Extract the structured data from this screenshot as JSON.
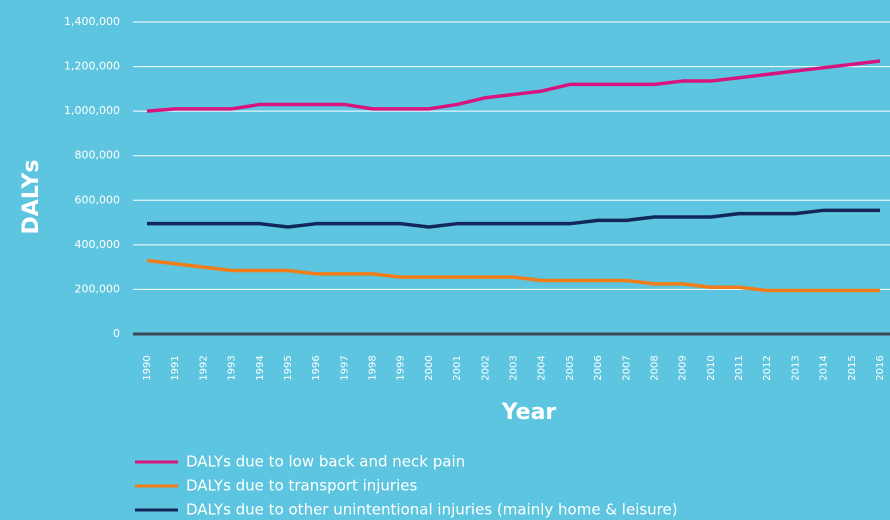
{
  "chart_data": {
    "type": "line",
    "x_label": "Year",
    "y_label": "DALYs",
    "categories": [
      "1990",
      "1991",
      "1992",
      "1993",
      "1994",
      "1995",
      "1996",
      "1997",
      "1998",
      "1999",
      "2000",
      "2001",
      "2002",
      "2003",
      "2004",
      "2005",
      "2006",
      "2007",
      "2008",
      "2009",
      "2010",
      "2011",
      "2012",
      "2013",
      "2014",
      "2015",
      "2016"
    ],
    "series": [
      {
        "name": "DALYs due to low back and neck pain",
        "color": "#d6157f",
        "values": [
          1000000,
          1010000,
          1010000,
          1010000,
          1030000,
          1030000,
          1030000,
          1030000,
          1010000,
          1010000,
          1010000,
          1030000,
          1060000,
          1075000,
          1090000,
          1120000,
          1120000,
          1120000,
          1120000,
          1135000,
          1135000,
          1150000,
          1165000,
          1180000,
          1195000,
          1210000,
          1225000
        ]
      },
      {
        "name": "DALYs due to transport injuries",
        "color": "#f07c1a",
        "values": [
          330000,
          315000,
          300000,
          285000,
          285000,
          285000,
          270000,
          270000,
          270000,
          255000,
          255000,
          255000,
          255000,
          255000,
          240000,
          240000,
          240000,
          240000,
          225000,
          225000,
          210000,
          210000,
          195000,
          195000,
          195000,
          195000,
          195000
        ]
      },
      {
        "name": "DALYs due to other unintentional injuries (mainly home & leisure)",
        "color": "#12285a",
        "values": [
          495000,
          495000,
          495000,
          495000,
          495000,
          480000,
          495000,
          495000,
          495000,
          495000,
          480000,
          495000,
          495000,
          495000,
          495000,
          495000,
          510000,
          510000,
          525000,
          525000,
          525000,
          540000,
          540000,
          540000,
          555000,
          555000,
          555000
        ]
      }
    ],
    "ylim": [
      0,
      1400000
    ],
    "yticks": [
      0,
      {
        "value": 200000,
        "label": "200,000"
      },
      {
        "value": 400000,
        "label": "400,000"
      },
      {
        "value": 600000,
        "label": "600,000"
      },
      {
        "value": 800000,
        "label": "800,000"
      },
      {
        "value": 1000000,
        "label": "1,000,000"
      },
      {
        "value": 1200000,
        "label": "1,200,000"
      },
      {
        "value": 1400000,
        "label": "1,400,000"
      }
    ],
    "grid": true
  }
}
